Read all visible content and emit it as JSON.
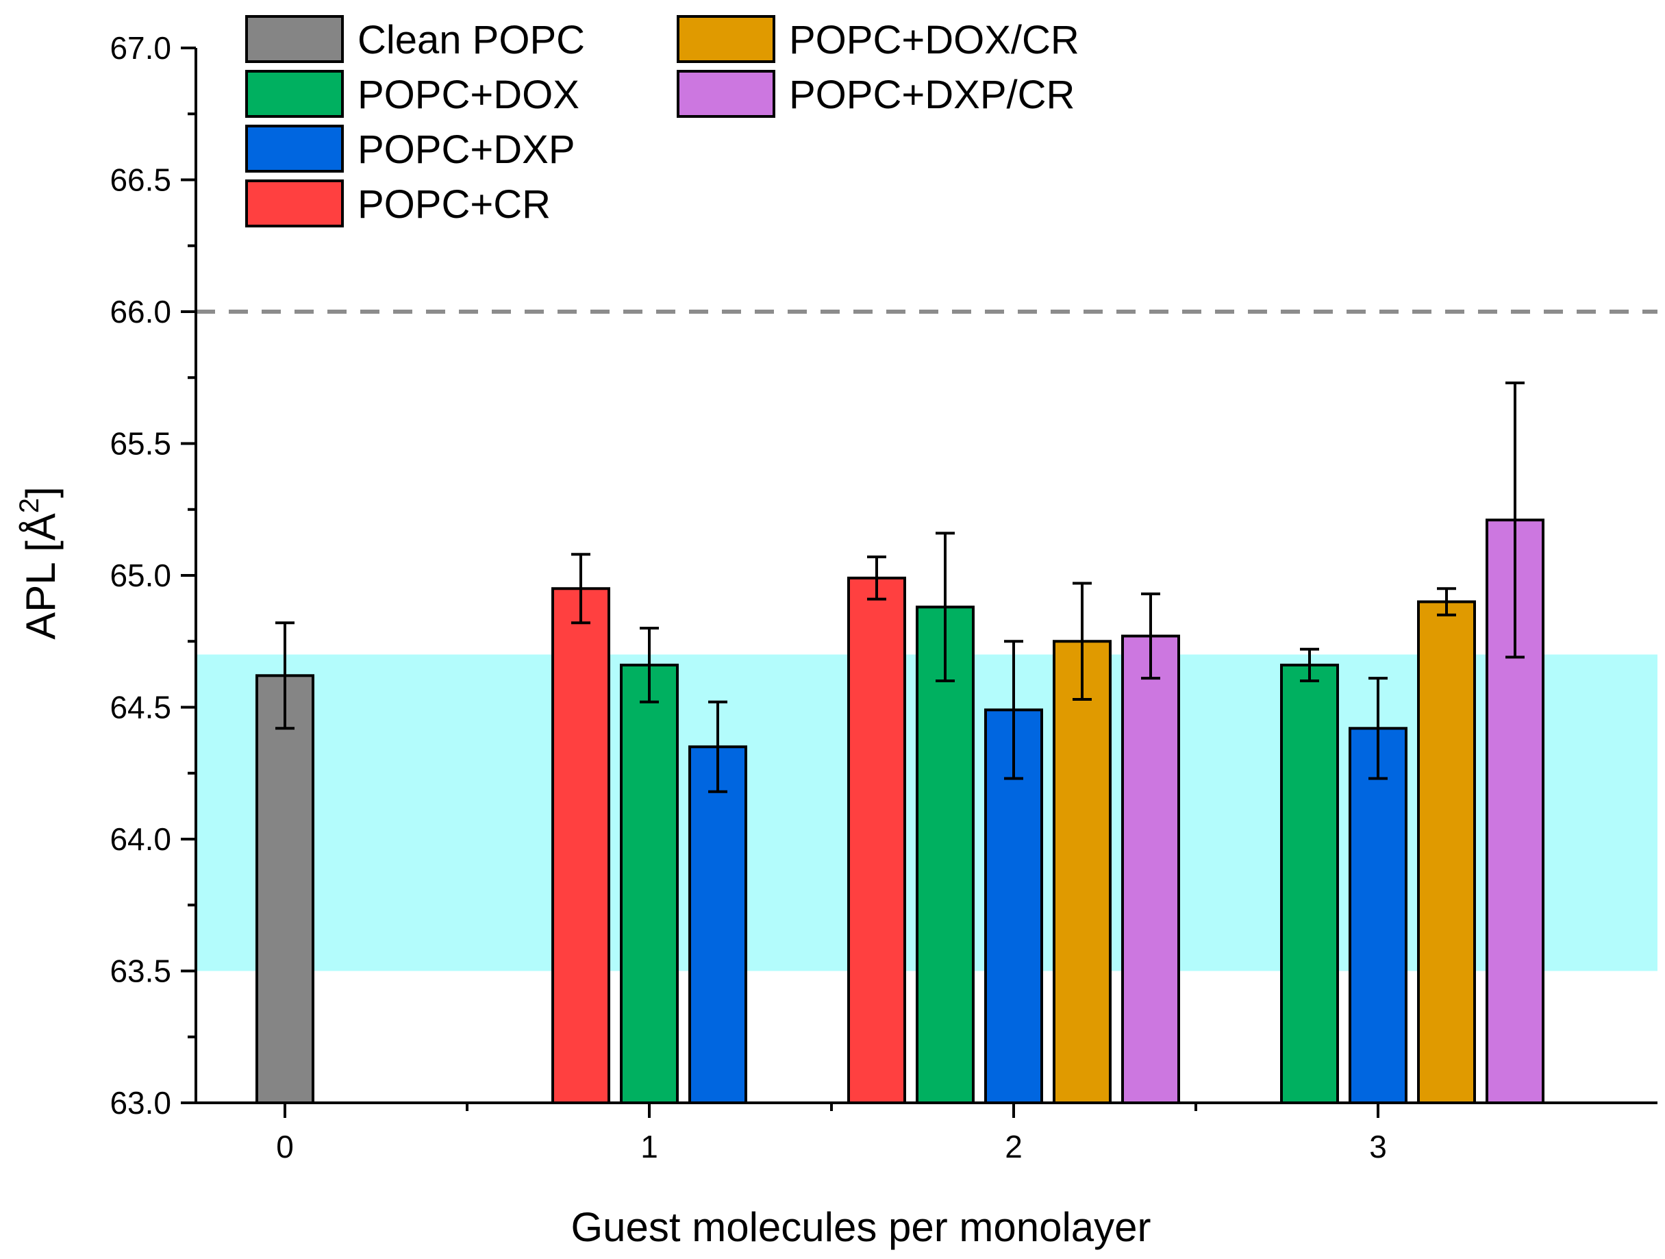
{
  "chart_data": {
    "type": "bar",
    "xlabel": "Guest molecules per monolayer",
    "ylabel": "APL [Å²]",
    "ylabel_main": "APL [Å",
    "ylabel_sup": "2",
    "ylabel_close": "]",
    "ylim": [
      63.0,
      67.0
    ],
    "yticks": [
      "63.0",
      "63.5",
      "64.0",
      "64.5",
      "65.0",
      "65.5",
      "66.0",
      "66.5",
      "67.0"
    ],
    "ytick_values": [
      63.0,
      63.5,
      64.0,
      64.5,
      65.0,
      65.5,
      66.0,
      66.5,
      67.0
    ],
    "categories": [
      "0",
      "1",
      "2",
      "3"
    ],
    "reference_line": {
      "value": 66.0,
      "style": "dashed",
      "color": "#8c8c8c"
    },
    "reference_band": {
      "from": 63.5,
      "to": 64.7,
      "color": "#b3fcfc"
    },
    "legend": {
      "placement": "top-left, two columns"
    },
    "series": [
      {
        "name": "Clean POPC",
        "color": "#858585",
        "points": [
          {
            "x": "0",
            "offset": 0,
            "value": 64.62,
            "err_low": 64.42,
            "err_high": 64.82
          }
        ]
      },
      {
        "name": "POPC+DOX",
        "color": "#00b060",
        "points": [
          {
            "x": "1",
            "offset": 0,
            "value": 64.66,
            "err_low": 64.52,
            "err_high": 64.8
          },
          {
            "x": "2",
            "offset": -1,
            "value": 64.88,
            "err_low": 64.6,
            "err_high": 65.16
          },
          {
            "x": "3",
            "offset": -1,
            "value": 64.66,
            "err_low": 64.6,
            "err_high": 64.72
          }
        ]
      },
      {
        "name": "POPC+DXP",
        "color": "#0066e0",
        "points": [
          {
            "x": "1",
            "offset": 1,
            "value": 64.35,
            "err_low": 64.18,
            "err_high": 64.52
          },
          {
            "x": "2",
            "offset": 0,
            "value": 64.49,
            "err_low": 64.23,
            "err_high": 64.75
          },
          {
            "x": "3",
            "offset": 0,
            "value": 64.42,
            "err_low": 64.23,
            "err_high": 64.61
          }
        ]
      },
      {
        "name": "POPC+CR",
        "color": "#ff4040",
        "points": [
          {
            "x": "1",
            "offset": -1,
            "value": 64.95,
            "err_low": 64.82,
            "err_high": 65.08
          },
          {
            "x": "2",
            "offset": -2,
            "value": 64.99,
            "err_low": 64.91,
            "err_high": 65.07
          }
        ]
      },
      {
        "name": "POPC+DOX/CR",
        "color": "#e09a00",
        "points": [
          {
            "x": "2",
            "offset": 1,
            "value": 64.75,
            "err_low": 64.53,
            "err_high": 64.97
          },
          {
            "x": "3",
            "offset": 1,
            "value": 64.9,
            "err_low": 64.85,
            "err_high": 64.95
          }
        ]
      },
      {
        "name": "POPC+DXP/CR",
        "color": "#cc77e0",
        "points": [
          {
            "x": "2",
            "offset": 2,
            "value": 64.77,
            "err_low": 64.61,
            "err_high": 64.93
          },
          {
            "x": "3",
            "offset": 2,
            "value": 65.21,
            "err_low": 64.69,
            "err_high": 65.73
          }
        ]
      }
    ]
  }
}
